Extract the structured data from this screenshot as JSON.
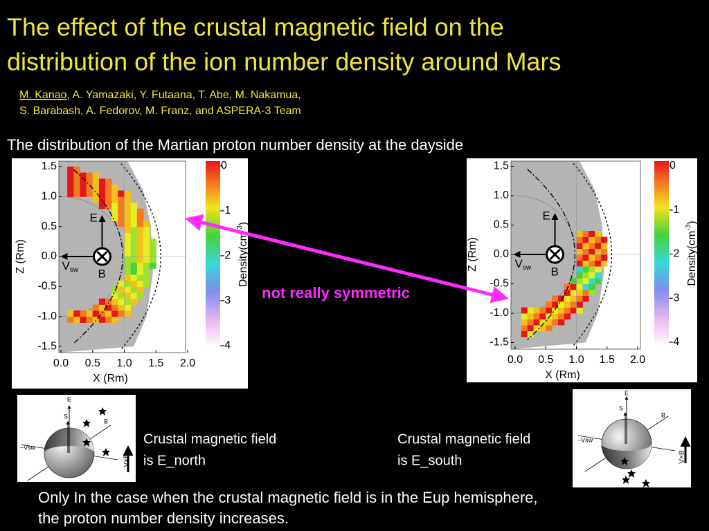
{
  "title": [
    "The effect of the crustal magnetic field on the",
    "distribution of the ion number density around Mars"
  ],
  "authors": {
    "first": "M. Kanao",
    "line1_rest": ", A. Yamazaki, Y. Futaana, T. Abe, M. Nakamua,",
    "line2": "S. Barabash, A. Fedorov, M. Franz, and ASPERA-3 Team"
  },
  "subtitle": "The distribution of the Martian proton number density at the dayside",
  "plots": [
    {
      "xticks": [
        {
          "value": 0,
          "label": "0.0"
        },
        {
          "value": 0.5,
          "label": "0.5"
        },
        {
          "value": 1,
          "label": "1.0"
        },
        {
          "value": 1.5,
          "label": "1.5"
        },
        {
          "value": 2,
          "label": "2.0"
        }
      ],
      "yticks": [
        {
          "value": 1.5,
          "label": "1.5"
        },
        {
          "value": 1,
          "label": "1.0"
        },
        {
          "value": 0.5,
          "label": "0.5"
        },
        {
          "value": 0,
          "label": "0.0"
        },
        {
          "value": -0.5,
          "label": "-0.5"
        },
        {
          "value": -1,
          "label": "-1.0"
        },
        {
          "value": -1.5,
          "label": "-1.5"
        }
      ],
      "xlabel": "X (Rm)",
      "ylabel": "Z (Rm)",
      "colorbar_ticks": [
        0,
        -1,
        -2,
        -3,
        -4
      ],
      "colorbar_label": [
        "Density(cm",
        "-3",
        ")"
      ],
      "vectors": {
        "E": "E",
        "V": "V",
        "sw": "sw",
        "B": "B"
      }
    },
    {
      "xticks": [
        {
          "value": 0,
          "label": "0.0"
        },
        {
          "value": 0.5,
          "label": "0.5"
        },
        {
          "value": 1,
          "label": "1.0"
        },
        {
          "value": 1.5,
          "label": "1.5"
        },
        {
          "value": 2,
          "label": "2.0"
        }
      ],
      "yticks": [
        {
          "value": 1.5,
          "label": "1.5"
        },
        {
          "value": 1,
          "label": "1.0"
        },
        {
          "value": 0.5,
          "label": "0.5"
        },
        {
          "value": 0,
          "label": "0.0"
        },
        {
          "value": -0.5,
          "label": "-0.5"
        },
        {
          "value": -1,
          "label": "-1.0"
        },
        {
          "value": -1.5,
          "label": "-1.5"
        }
      ],
      "xlabel": "X (Rm)",
      "ylabel": "Z (Rm)",
      "colorbar_ticks": [
        0,
        -1,
        -2,
        -3,
        -4
      ],
      "colorbar_label": [
        "Density(cm",
        "-3",
        ")"
      ],
      "vectors": {
        "E": "E",
        "V": "V",
        "sw": "sw",
        "B": "B"
      }
    }
  ],
  "annotation": "not really symmetric",
  "diagrams": [
    {
      "labels": [
        "E",
        "S",
        "B",
        "−Vsw",
        "V×B"
      ],
      "caption": [
        "Crustal magnetic field",
        "is E_north"
      ]
    },
    {
      "labels": [
        "E",
        "S",
        "B",
        "−Vsw",
        "V×B"
      ],
      "caption": [
        "Crustal magnetic field",
        "is E_south"
      ]
    }
  ],
  "conclusion": [
    "Only In the case when the crustal magnetic field is in the Eup hemisphere,",
    "the proton number density increases."
  ]
}
